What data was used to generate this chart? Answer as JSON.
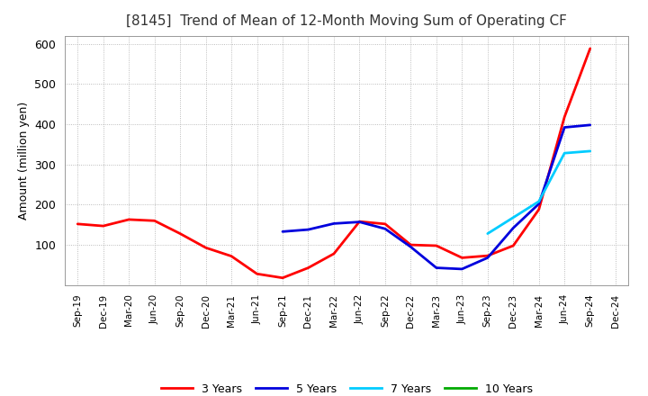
{
  "title": "[8145]  Trend of Mean of 12-Month Moving Sum of Operating CF",
  "ylabel": "Amount (million yen)",
  "ylim": [
    0,
    620
  ],
  "yticks": [
    100,
    200,
    300,
    400,
    500,
    600
  ],
  "background_color": "#ffffff",
  "grid_color": "#aaaaaa",
  "x_labels": [
    "Sep-19",
    "Dec-19",
    "Mar-20",
    "Jun-20",
    "Sep-20",
    "Dec-20",
    "Mar-21",
    "Jun-21",
    "Sep-21",
    "Dec-21",
    "Mar-22",
    "Jun-22",
    "Sep-22",
    "Dec-22",
    "Mar-23",
    "Jun-23",
    "Sep-23",
    "Dec-23",
    "Mar-24",
    "Jun-24",
    "Sep-24",
    "Dec-24"
  ],
  "series": {
    "3 Years": {
      "color": "#ff0000",
      "linewidth": 2.0,
      "data_x": [
        0,
        1,
        2,
        3,
        4,
        5,
        6,
        7,
        8,
        9,
        10,
        11,
        12,
        13,
        14,
        15,
        16,
        17,
        18,
        19,
        20
      ],
      "data_y": [
        152,
        147,
        163,
        160,
        128,
        93,
        72,
        28,
        18,
        43,
        78,
        158,
        152,
        100,
        98,
        68,
        73,
        98,
        188,
        418,
        588
      ]
    },
    "5 Years": {
      "color": "#0000dd",
      "linewidth": 2.0,
      "data_x": [
        8,
        9,
        10,
        11,
        12,
        13,
        14,
        15,
        16,
        17,
        18,
        19,
        20
      ],
      "data_y": [
        133,
        138,
        153,
        157,
        140,
        95,
        43,
        40,
        68,
        142,
        202,
        392,
        398
      ]
    },
    "7 Years": {
      "color": "#00ccff",
      "linewidth": 2.0,
      "data_x": [
        16,
        17,
        18,
        19,
        20
      ],
      "data_y": [
        128,
        168,
        208,
        328,
        333
      ]
    },
    "10 Years": {
      "color": "#00aa00",
      "linewidth": 2.0,
      "data_x": [],
      "data_y": []
    }
  }
}
